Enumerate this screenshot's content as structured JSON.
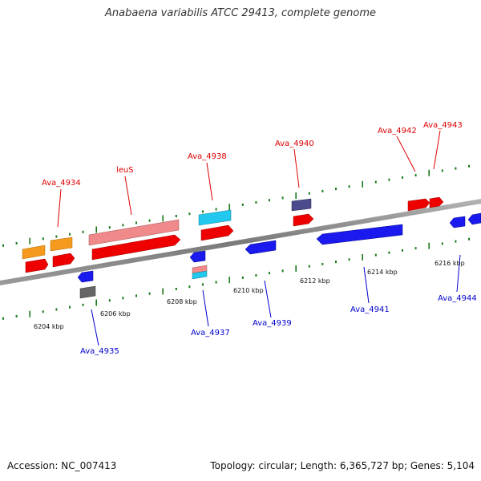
{
  "title": "Anabaena variabilis ATCC 29413, complete genome",
  "footer": {
    "accession": "Accession: NC_007413",
    "summary": "Topology: circular; Length: 6,365,727 bp; Genes: 5,104"
  },
  "colors": {
    "forward_label": "#dd0000",
    "reverse_label": "#0000cc",
    "tick": "#1a7a1a",
    "backbone": "#8a8a8a"
  },
  "scale": [
    "6204 kbp",
    "6206 kbp",
    "6208 kbp",
    "6210 kbp",
    "6212 kbp",
    "6214 kbp",
    "6216 kbp"
  ],
  "forward_genes": [
    "Ava_4934",
    "leuS",
    "Ava_4938",
    "Ava_4940",
    "Ava_4942",
    "Ava_4943"
  ],
  "reverse_genes": [
    "Ava_4935",
    "Ava_4937",
    "Ava_4939",
    "Ava_4941",
    "Ava_4944"
  ]
}
